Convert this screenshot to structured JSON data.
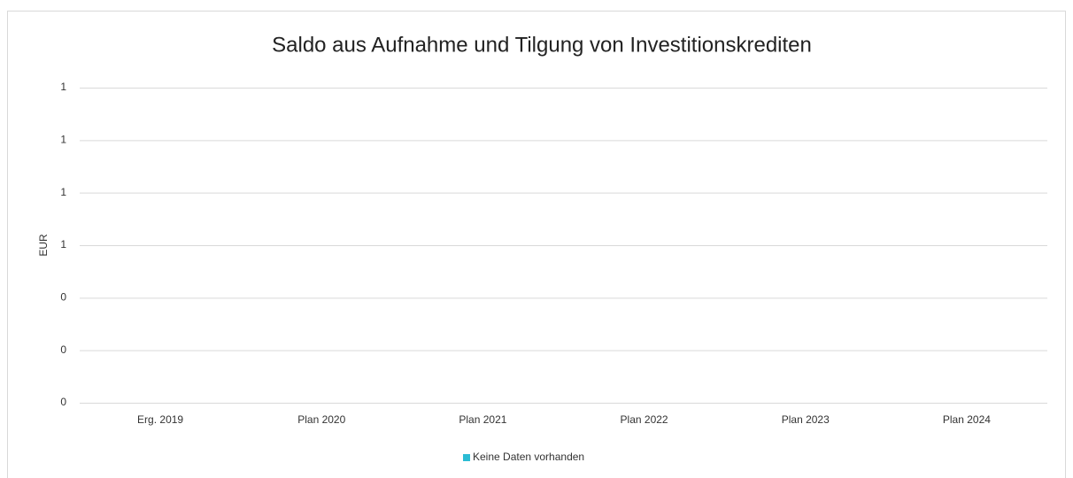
{
  "chart_data": {
    "type": "bar",
    "title": "Saldo aus Aufnahme und Tilgung von Investitionskrediten",
    "y_label": "EUR",
    "categories": [
      "Erg. 2019",
      "Plan 2020",
      "Plan 2021",
      "Plan 2022",
      "Plan 2023",
      "Plan 2024"
    ],
    "series": [
      {
        "name": "Keine Daten vorhanden",
        "color": "#2bbcd4",
        "values": [
          null,
          null,
          null,
          null,
          null,
          null
        ]
      }
    ],
    "ylim": [
      0,
      1.2
    ],
    "yticks": [
      {
        "value": 0,
        "label": "0"
      },
      {
        "value": 0.2,
        "label": "0"
      },
      {
        "value": 0.4,
        "label": "0"
      },
      {
        "value": 0.6,
        "label": "1"
      },
      {
        "value": 0.8,
        "label": "1"
      },
      {
        "value": 1.0,
        "label": "1"
      },
      {
        "value": 1.2,
        "label": "1"
      }
    ],
    "grid": true,
    "legend": "bottom"
  }
}
